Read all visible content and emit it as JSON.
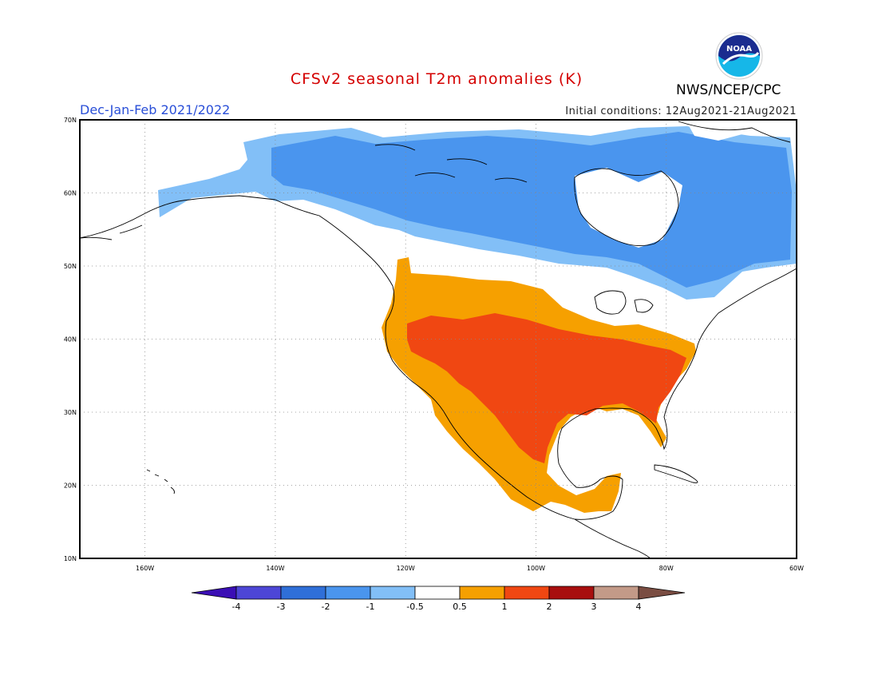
{
  "header": {
    "title": "CFSv2 seasonal T2m anomalies (K)",
    "season": "Dec-Jan-Feb 2021/2022",
    "init_conditions": "Initial conditions: 12Aug2021-21Aug2021",
    "org": "NWS/NCEP/CPC",
    "logo_text": "NOAA"
  },
  "map": {
    "lon_range": [
      -170,
      -60
    ],
    "lat_range": [
      10,
      70
    ],
    "lat_labels": [
      "70N",
      "60N",
      "50N",
      "40N",
      "30N",
      "20N",
      "10N"
    ],
    "lon_labels": [
      "160W",
      "140W",
      "120W",
      "100W",
      "80W",
      "60W"
    ]
  },
  "colorbar": {
    "labels": [
      "-4",
      "-3",
      "-2",
      "-1",
      "-0.5",
      "0.5",
      "1",
      "2",
      "3",
      "4"
    ],
    "colors": [
      "#3b0fb5",
      "#4d46d6",
      "#2f6fd8",
      "#4a95ee",
      "#82bff7",
      "#ffffff",
      "#f6a000",
      "#f04712",
      "#a80e0e",
      "#c39a88",
      "#7a4d42"
    ]
  },
  "colors": {
    "cold_light": "#82bff7",
    "cold": "#4a95ee",
    "warm": "#f6a000",
    "warm_strong": "#f04712"
  }
}
